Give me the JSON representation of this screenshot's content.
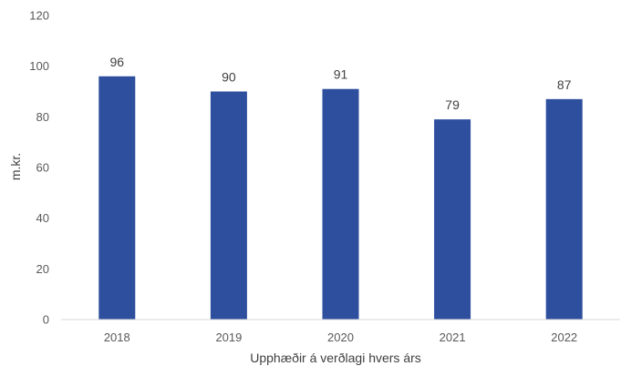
{
  "chart_data": {
    "type": "bar",
    "categories": [
      "2018",
      "2019",
      "2020",
      "2021",
      "2022"
    ],
    "values": [
      96,
      90,
      91,
      79,
      87
    ],
    "data_labels": [
      "96",
      "90",
      "91",
      "79",
      "87"
    ],
    "ylabel": "m.kr.",
    "xlabel": "Upphæðir á verðlagi hvers árs",
    "ylim": [
      0,
      120
    ],
    "yticks": [
      0,
      20,
      40,
      60,
      80,
      100,
      120
    ],
    "grid": false,
    "legend": "none",
    "bar_color": "#2E4F9E"
  }
}
